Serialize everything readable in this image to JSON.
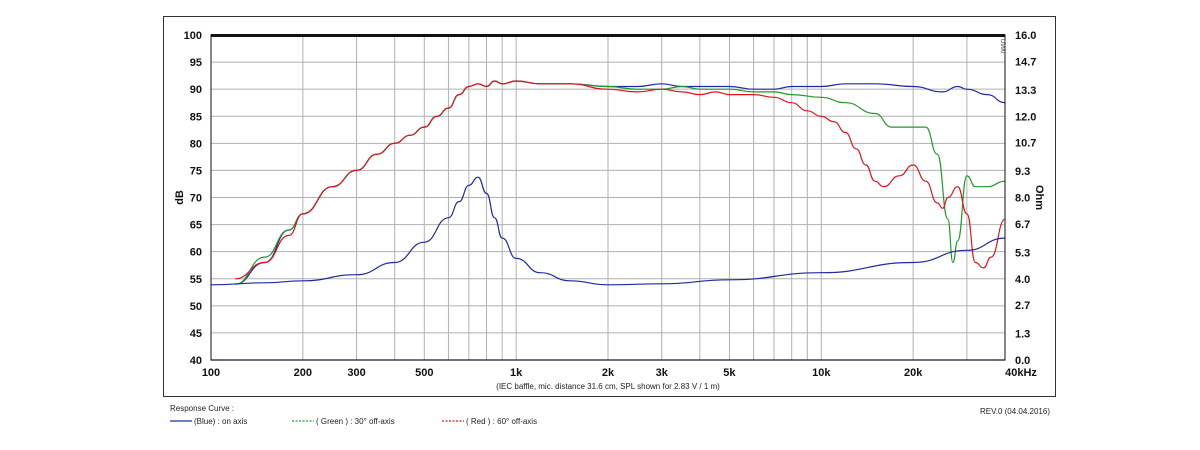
{
  "chart_data": {
    "type": "line",
    "xscale": "log",
    "xlim": [
      100,
      40000
    ],
    "ylim": [
      40,
      100
    ],
    "y2lim": [
      0,
      16
    ],
    "ylabel": "dB",
    "y2label": "Ohm",
    "x_ticks": [
      100,
      200,
      300,
      500,
      1000,
      2000,
      3000,
      5000,
      10000,
      20000,
      40000
    ],
    "x_tick_labels": [
      "100",
      "200",
      "300",
      "500",
      "1k",
      "2k",
      "3k",
      "5k",
      "10k",
      "20k",
      "40kHz"
    ],
    "y_ticks": [
      40,
      45,
      50,
      55,
      60,
      65,
      70,
      75,
      80,
      85,
      90,
      95,
      100
    ],
    "y_tick_labels": [
      "40",
      "45",
      "50",
      "55",
      "60",
      "65",
      "70",
      "75",
      "80",
      "85",
      "90",
      "95",
      "100"
    ],
    "y2_ticks": [
      0,
      1.3,
      2.7,
      4.0,
      5.3,
      6.7,
      8.0,
      9.3,
      10.7,
      12.0,
      13.3,
      14.7,
      16.0
    ],
    "y2_tick_labels": [
      "0.0",
      "1.3",
      "2.7",
      "4.0",
      "5.3",
      "6.7",
      "8.0",
      "9.3",
      "10.7",
      "12.0",
      "13.3",
      "14.7",
      "16.0"
    ],
    "grid": true,
    "note": "(IEC baffle, mic. distance 31.6 cm, SPL shown for 2.83 V / 1 m)",
    "side_mark": "D990",
    "series": [
      {
        "name": "(Blue)  : on axis",
        "color": "#1f2aa0",
        "x": [
          120,
          150,
          180,
          200,
          250,
          300,
          350,
          400,
          450,
          500,
          550,
          600,
          650,
          700,
          750,
          800,
          850,
          900,
          1000,
          1200,
          1500,
          2000,
          2500,
          3000,
          3500,
          4000,
          5000,
          6000,
          7000,
          8000,
          10000,
          12000,
          15000,
          20000,
          25000,
          28000,
          30000,
          35000,
          40000
        ],
        "y": [
          54,
          58,
          64,
          67,
          72,
          75,
          78,
          80,
          81.5,
          83,
          85,
          86.5,
          89,
          90.5,
          91,
          90.5,
          91.5,
          91,
          91.5,
          91,
          91,
          90.5,
          90.5,
          91,
          90.5,
          90.5,
          90.5,
          90,
          90,
          90.5,
          90.5,
          91,
          91,
          90.5,
          89.5,
          90.5,
          90,
          89,
          87.5
        ]
      },
      {
        "name": "( Green ) : 30° off-axis",
        "color": "#1e9a2a",
        "x": [
          120,
          150,
          180,
          200,
          250,
          300,
          350,
          400,
          450,
          500,
          550,
          600,
          650,
          700,
          750,
          800,
          850,
          900,
          1000,
          1200,
          1500,
          2000,
          2500,
          3000,
          3500,
          4000,
          5000,
          6000,
          7000,
          8000,
          10000,
          12000,
          15000,
          17000,
          20000,
          22000,
          24000,
          26000,
          27000,
          28000,
          30000,
          32000,
          35000,
          40000
        ],
        "y": [
          54,
          59,
          64,
          67,
          72,
          75,
          78,
          80,
          81.5,
          83,
          85,
          86.5,
          89,
          90.5,
          91,
          90.5,
          91.5,
          91,
          91.5,
          91,
          91,
          90.5,
          90,
          90,
          90.5,
          90,
          90,
          89.5,
          89.5,
          89,
          88.5,
          87.5,
          85.5,
          83,
          83,
          83,
          78,
          66,
          58,
          62,
          74,
          72,
          72,
          73
        ]
      },
      {
        "name": "( Red ) : 60° off-axis",
        "color": "#e0141e",
        "x": [
          120,
          150,
          180,
          200,
          250,
          300,
          350,
          400,
          450,
          500,
          550,
          600,
          650,
          700,
          750,
          800,
          850,
          900,
          1000,
          1200,
          1500,
          2000,
          2500,
          3000,
          3500,
          4000,
          4500,
          5000,
          6000,
          7000,
          8000,
          9000,
          10000,
          11000,
          12000,
          13000,
          14000,
          15000,
          16000,
          18000,
          20000,
          22000,
          24000,
          25000,
          26000,
          28000,
          30000,
          32000,
          34000,
          36000,
          40000
        ],
        "y": [
          55,
          58,
          63,
          67,
          72,
          75,
          78,
          80,
          81.5,
          83,
          85,
          86.5,
          89,
          90.5,
          91,
          90.5,
          91.5,
          91,
          91.5,
          91,
          91,
          90,
          89.5,
          90,
          89.5,
          89,
          89.5,
          89,
          89,
          88.5,
          87.5,
          86,
          85,
          84,
          82,
          79,
          76,
          73,
          72,
          74,
          76,
          73,
          69,
          68,
          70,
          72,
          67,
          58,
          57,
          59,
          66
        ]
      },
      {
        "name": "Impedance",
        "color": "#1f2aa0",
        "axis": "right",
        "x": [
          100,
          150,
          200,
          300,
          400,
          500,
          600,
          650,
          700,
          750,
          800,
          850,
          900,
          1000,
          1200,
          1500,
          2000,
          3000,
          5000,
          10000,
          20000,
          30000,
          40000
        ],
        "y": [
          3.7,
          3.8,
          3.9,
          4.2,
          4.8,
          5.8,
          7.0,
          7.8,
          8.6,
          9.0,
          8.2,
          7.0,
          6.0,
          5.0,
          4.3,
          3.9,
          3.7,
          3.75,
          3.95,
          4.3,
          4.8,
          5.4,
          6.0
        ]
      }
    ],
    "legend": {
      "title": "Response Curve :",
      "placement": "bottom-left",
      "entries": [
        {
          "label": "(Blue)  : on axis",
          "color": "#1f2aa0",
          "dash": "solid"
        },
        {
          "label": "( Green ) : 30° off-axis",
          "color": "#1e9a2a",
          "dash": "dashed"
        },
        {
          "label": "( Red ) : 60° off-axis",
          "color": "#e0141e",
          "dash": "dashed"
        }
      ]
    },
    "revision": "REV.0 (04.04.2016)"
  }
}
